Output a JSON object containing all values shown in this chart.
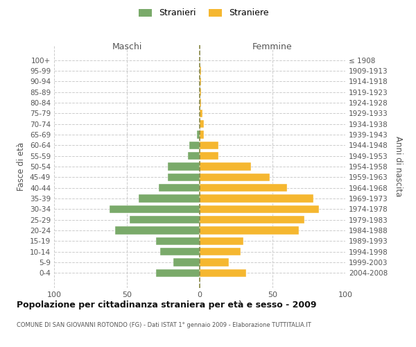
{
  "age_groups": [
    "100+",
    "95-99",
    "90-94",
    "85-89",
    "80-84",
    "75-79",
    "70-74",
    "65-69",
    "60-64",
    "55-59",
    "50-54",
    "45-49",
    "40-44",
    "35-39",
    "30-34",
    "25-29",
    "20-24",
    "15-19",
    "10-14",
    "5-9",
    "0-4"
  ],
  "birth_years": [
    "≤ 1908",
    "1909-1913",
    "1914-1918",
    "1919-1923",
    "1924-1928",
    "1929-1933",
    "1934-1938",
    "1939-1943",
    "1944-1948",
    "1949-1953",
    "1954-1958",
    "1959-1963",
    "1964-1968",
    "1969-1973",
    "1974-1978",
    "1979-1983",
    "1984-1988",
    "1989-1993",
    "1994-1998",
    "1999-2003",
    "2004-2008"
  ],
  "maschi": [
    0,
    0,
    0,
    0,
    0,
    0,
    0,
    2,
    7,
    8,
    22,
    22,
    28,
    42,
    62,
    48,
    58,
    30,
    27,
    18,
    30
  ],
  "femmine": [
    0,
    1,
    1,
    1,
    1,
    2,
    3,
    3,
    13,
    13,
    35,
    48,
    60,
    78,
    82,
    72,
    68,
    30,
    28,
    20,
    32
  ],
  "color_maschi": "#7aaa6a",
  "color_femmine": "#f5b730",
  "color_dashed": "#888844",
  "title": "Popolazione per cittadinanza straniera per età e sesso - 2009",
  "subtitle": "COMUNE DI SAN GIOVANNI ROTONDO (FG) - Dati ISTAT 1° gennaio 2009 - Elaborazione TUTTITALIA.IT",
  "ylabel_left": "Fasce di età",
  "ylabel_right": "Anni di nascita",
  "xlabel_left": "Maschi",
  "xlabel_right": "Femmine",
  "legend_maschi": "Stranieri",
  "legend_femmine": "Straniere",
  "xlim": 100,
  "background_color": "#ffffff",
  "grid_color": "#cccccc"
}
